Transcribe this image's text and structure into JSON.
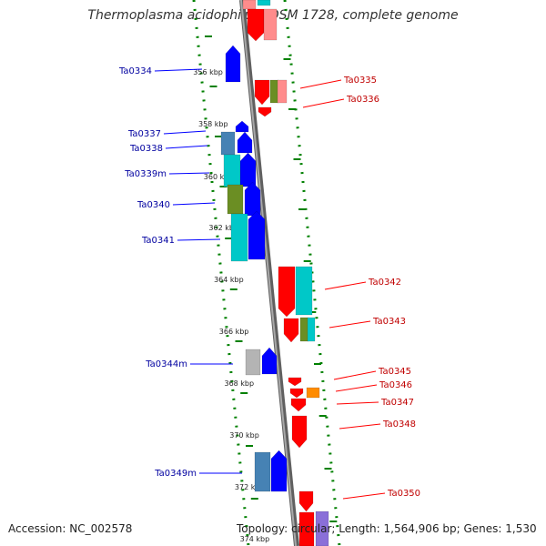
{
  "title": "Thermoplasma acidophilum DSM 1728, complete genome",
  "footer": {
    "accession": "Accession: NC_002578",
    "summary": "Topology: circular; Length: 1,564,906 bp; Genes: 1,530"
  },
  "colors": {
    "plus": "#0000ff",
    "minus": "#ff0000",
    "cyan": "#00c8c8",
    "olive": "#6b8e23",
    "steel": "#4682b4",
    "grey": "#b4b4b4",
    "pink": "#ff8c8c",
    "orange": "#ff8c00",
    "purple": "#8a6fd8",
    "axis": "#808080",
    "dots": "#008000"
  },
  "ticks": [
    "356 kbp",
    "358 kbp",
    "360 kbp",
    "362 kbp",
    "364 kbp",
    "366 kbp",
    "368 kbp",
    "370 kbp",
    "372 kbp",
    "374 kbp"
  ],
  "left_labels": [
    "Ta0334",
    "Ta0337",
    "Ta0338",
    "Ta0339m",
    "Ta0340",
    "Ta0341",
    "Ta0344m",
    "Ta0349m"
  ],
  "right_labels": [
    "Ta0335",
    "Ta0336",
    "Ta0342",
    "Ta0343",
    "Ta0345",
    "Ta0346",
    "Ta0347",
    "Ta0348",
    "Ta0350"
  ]
}
